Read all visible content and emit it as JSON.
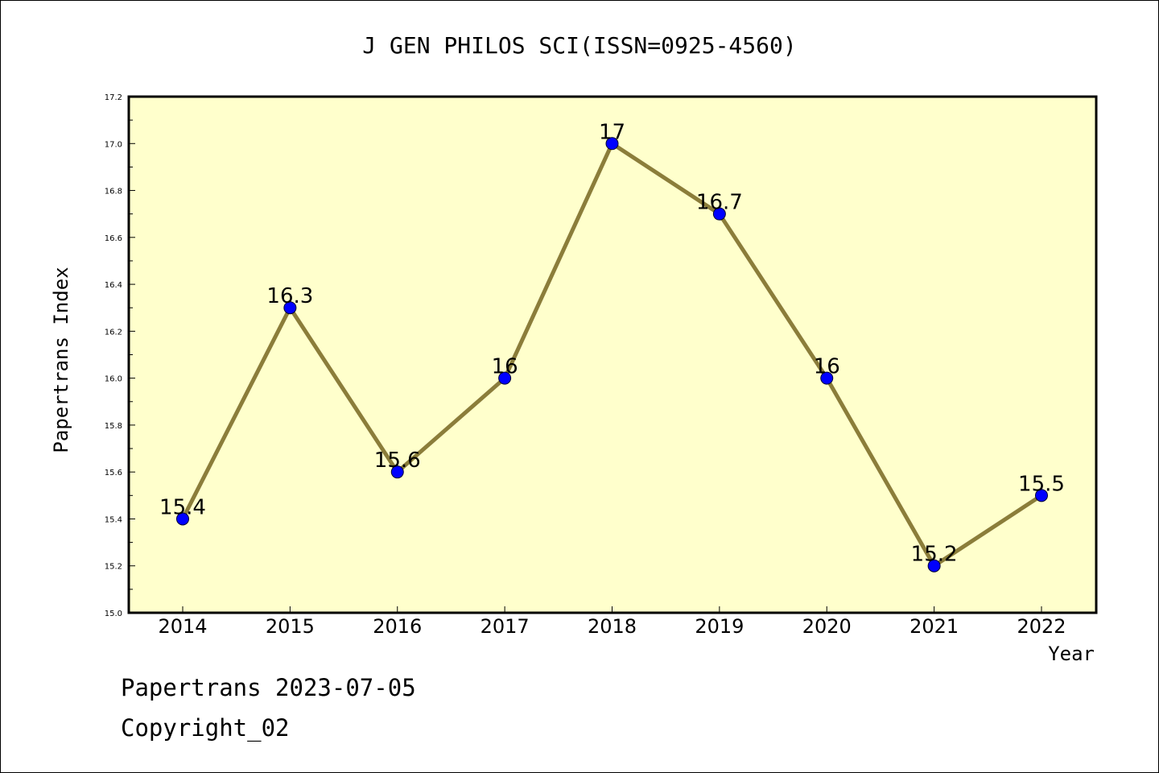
{
  "chart_data": {
    "type": "line",
    "title": "J GEN PHILOS SCI(ISSN=0925-4560)",
    "xlabel": "Year",
    "ylabel": "Papertrans Index",
    "categories": [
      "2014",
      "2015",
      "2016",
      "2017",
      "2018",
      "2019",
      "2020",
      "2021",
      "2022"
    ],
    "values": [
      15.4,
      16.3,
      15.6,
      16.0,
      17.0,
      16.7,
      16.0,
      15.2,
      15.5
    ],
    "data_labels": [
      "15.4",
      "16.3",
      "15.6",
      "16",
      "17",
      "16.7",
      "16",
      "15.2",
      "15.5"
    ],
    "ylim": [
      15.0,
      17.2
    ],
    "yticks": [
      "15.0",
      "15.2",
      "15.4",
      "15.6",
      "15.8",
      "16.0",
      "16.2",
      "16.4",
      "16.6",
      "16.8",
      "17.0",
      "17.2"
    ],
    "grid": false,
    "legend": "none",
    "colors": {
      "plot_background": "#ffffcc",
      "line": "#8b7d3a",
      "marker": "#0000ff"
    }
  },
  "footer": {
    "line1": "Papertrans 2023-07-05",
    "line2": "Copyright_02"
  }
}
